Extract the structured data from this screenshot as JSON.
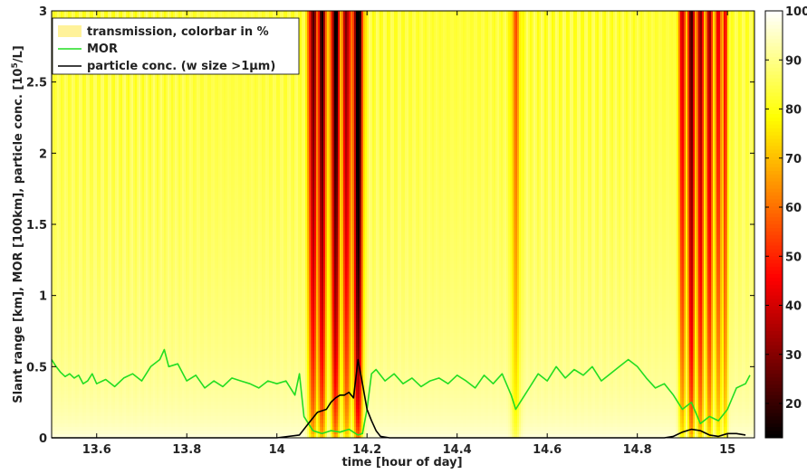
{
  "chart_data": {
    "type": "heatmap",
    "title": "",
    "xlabel": "time [hour of day]",
    "ylabel": "Slant range [km], MOR [100km], particle conc. [10^5/L]",
    "ylabel_parts": {
      "main": "Slant range [km], MOR [100km], particle conc. [10",
      "sup": "5",
      "tail": "/L]"
    },
    "xlim": [
      13.5,
      15.06
    ],
    "ylim": [
      0,
      3
    ],
    "x_ticks": [
      13.6,
      13.8,
      14,
      14.2,
      14.4,
      14.6,
      14.8,
      15
    ],
    "x_tick_labels": [
      "13.6",
      "13.8",
      "14",
      "14.2",
      "14.4",
      "14.6",
      "14.8",
      "15"
    ],
    "y_ticks": [
      0,
      0.5,
      1,
      1.5,
      2,
      2.5,
      3
    ],
    "y_tick_labels": [
      "0",
      "0.5",
      "1",
      "1.5",
      "2",
      "2.5",
      "3"
    ],
    "grid": false,
    "legend_position": "top-left",
    "colorbar": {
      "min": 13,
      "max": 100,
      "ticks": [
        20,
        30,
        40,
        50,
        60,
        70,
        80,
        90,
        100
      ],
      "tick_labels": [
        "20",
        "30",
        "40",
        "50",
        "60",
        "70",
        "80",
        "90",
        "100"
      ],
      "colormap": "hot"
    },
    "transmission": {
      "name": "transmission, colorbar in %",
      "description_bands": [
        {
          "x_center": 14.08,
          "width": 0.01,
          "min_transmission": 40
        },
        {
          "x_center": 14.1,
          "width": 0.01,
          "min_transmission": 35
        },
        {
          "x_center": 14.13,
          "width": 0.01,
          "min_transmission": 28
        },
        {
          "x_center": 14.155,
          "width": 0.01,
          "min_transmission": 45
        },
        {
          "x_center": 14.18,
          "width": 0.01,
          "min_transmission": 13
        },
        {
          "x_center": 14.53,
          "width": 0.01,
          "min_transmission": 75
        },
        {
          "x_center": 14.9,
          "width": 0.008,
          "min_transmission": 55
        },
        {
          "x_center": 14.92,
          "width": 0.008,
          "min_transmission": 35
        },
        {
          "x_center": 14.94,
          "width": 0.008,
          "min_transmission": 45
        },
        {
          "x_center": 14.96,
          "width": 0.008,
          "min_transmission": 50
        },
        {
          "x_center": 14.98,
          "width": 0.008,
          "min_transmission": 60
        },
        {
          "x_center": 14.995,
          "width": 0.006,
          "min_transmission": 62
        }
      ],
      "background_transmission_top": 83,
      "background_transmission_bottom": 99
    },
    "series": [
      {
        "name": "MOR",
        "color": "#22dd22",
        "x": [
          13.5,
          13.51,
          13.52,
          13.53,
          13.54,
          13.55,
          13.56,
          13.57,
          13.58,
          13.59,
          13.6,
          13.62,
          13.64,
          13.66,
          13.68,
          13.7,
          13.72,
          13.74,
          13.75,
          13.76,
          13.78,
          13.8,
          13.82,
          13.84,
          13.86,
          13.88,
          13.9,
          13.92,
          13.94,
          13.96,
          13.98,
          14.0,
          14.02,
          14.04,
          14.05,
          14.06,
          14.08,
          14.1,
          14.12,
          14.14,
          14.16,
          14.18,
          14.19,
          14.2,
          14.21,
          14.22,
          14.24,
          14.26,
          14.28,
          14.3,
          14.32,
          14.34,
          14.36,
          14.38,
          14.4,
          14.42,
          14.44,
          14.46,
          14.48,
          14.5,
          14.52,
          14.53,
          14.54,
          14.56,
          14.58,
          14.6,
          14.62,
          14.64,
          14.66,
          14.68,
          14.7,
          14.72,
          14.74,
          14.76,
          14.78,
          14.8,
          14.82,
          14.84,
          14.86,
          14.88,
          14.9,
          14.92,
          14.94,
          14.96,
          14.98,
          15.0,
          15.02,
          15.04,
          15.05
        ],
        "values": [
          0.55,
          0.5,
          0.46,
          0.43,
          0.45,
          0.42,
          0.44,
          0.38,
          0.4,
          0.45,
          0.38,
          0.41,
          0.36,
          0.42,
          0.45,
          0.4,
          0.5,
          0.55,
          0.62,
          0.5,
          0.52,
          0.4,
          0.44,
          0.35,
          0.4,
          0.36,
          0.42,
          0.4,
          0.38,
          0.35,
          0.4,
          0.38,
          0.4,
          0.3,
          0.45,
          0.15,
          0.05,
          0.03,
          0.05,
          0.04,
          0.06,
          0.02,
          0.03,
          0.2,
          0.45,
          0.48,
          0.4,
          0.45,
          0.38,
          0.42,
          0.36,
          0.4,
          0.42,
          0.38,
          0.44,
          0.4,
          0.35,
          0.44,
          0.38,
          0.45,
          0.3,
          0.2,
          0.25,
          0.35,
          0.45,
          0.4,
          0.5,
          0.42,
          0.48,
          0.44,
          0.5,
          0.4,
          0.45,
          0.5,
          0.55,
          0.5,
          0.42,
          0.35,
          0.38,
          0.3,
          0.2,
          0.25,
          0.1,
          0.15,
          0.12,
          0.2,
          0.35,
          0.38,
          0.44
        ]
      },
      {
        "name": "particle conc. (w size >1µm)",
        "color": "#000000",
        "x": [
          13.5,
          13.6,
          13.7,
          13.8,
          13.9,
          14.0,
          14.05,
          14.07,
          14.09,
          14.11,
          14.12,
          14.13,
          14.14,
          14.15,
          14.16,
          14.17,
          14.18,
          14.19,
          14.2,
          14.21,
          14.22,
          14.23,
          14.25,
          14.3,
          14.4,
          14.5,
          14.6,
          14.7,
          14.8,
          14.86,
          14.88,
          14.9,
          14.92,
          14.94,
          14.96,
          14.98,
          15.0,
          15.02,
          15.04
        ],
        "values": [
          0.0,
          0.0,
          0.0,
          0.0,
          0.0,
          0.0,
          0.02,
          0.1,
          0.18,
          0.2,
          0.25,
          0.28,
          0.3,
          0.3,
          0.32,
          0.28,
          0.55,
          0.38,
          0.2,
          0.12,
          0.05,
          0.01,
          0.0,
          0.0,
          0.0,
          0.0,
          0.0,
          0.0,
          0.0,
          0.0,
          0.01,
          0.04,
          0.06,
          0.05,
          0.02,
          0.01,
          0.03,
          0.03,
          0.02
        ]
      }
    ]
  }
}
